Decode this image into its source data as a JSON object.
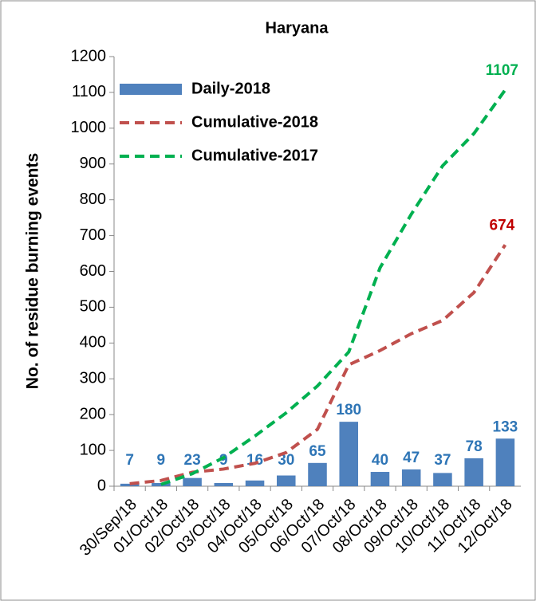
{
  "chart_data": {
    "type": "bar",
    "title": "Haryana",
    "y_label": "No. of residue burning  events",
    "categories": [
      "30/Sep/18",
      "01/Oct/18",
      "02/Oct/18",
      "03/Oct/18",
      "04/Oct/18",
      "05/Oct/18",
      "06/Oct/18",
      "07/Oct/18",
      "08/Oct/18",
      "09/Oct/18",
      "10/Oct/18",
      "11/Oct/18",
      "12/Oct/18"
    ],
    "series": [
      {
        "name": "Daily-2018",
        "type": "bar",
        "color": "#4f81bd",
        "label_color": "#2e75b6",
        "values": [
          7,
          9,
          23,
          9,
          16,
          30,
          65,
          180,
          40,
          47,
          37,
          78,
          133
        ]
      },
      {
        "name": "Cumulative-2018",
        "type": "line",
        "color": "#c0504d",
        "label_color": "#c00000",
        "values": [
          7,
          16,
          39,
          48,
          64,
          94,
          159,
          339,
          379,
          426,
          463,
          541,
          674
        ]
      },
      {
        "name": "Cumulative-2017",
        "type": "line",
        "color": "#00b050",
        "label_color": "#00b050",
        "values": [
          null,
          5,
          35,
          80,
          140,
          205,
          280,
          375,
          610,
          760,
          895,
          985,
          1107
        ]
      }
    ],
    "ylim": [
      0,
      1200
    ],
    "yticks": [
      0,
      100,
      200,
      300,
      400,
      500,
      600,
      700,
      800,
      900,
      1000,
      1100,
      1200
    ],
    "legend": "upper-left"
  }
}
